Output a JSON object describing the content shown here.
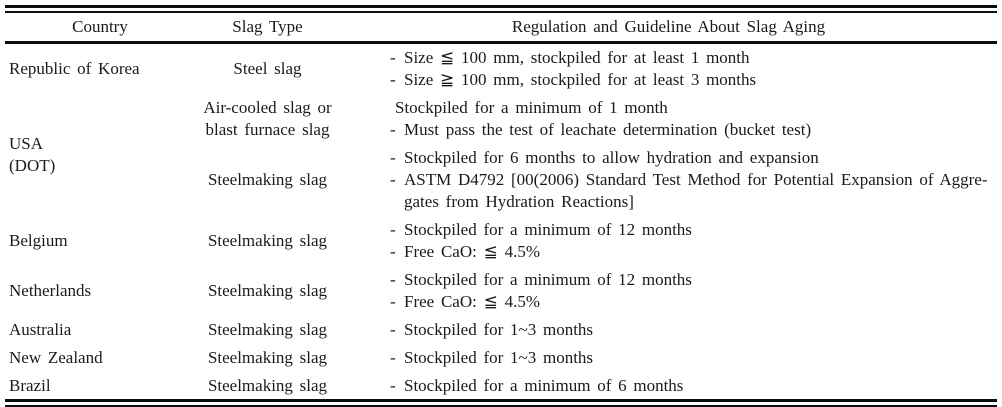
{
  "table": {
    "headers": {
      "country": "Country",
      "slag_type": "Slag Type",
      "regulation": "Regulation and Guideline About Slag Aging"
    },
    "rows": [
      {
        "country": "Republic of Korea",
        "groups": [
          {
            "slag_type": "Steel slag",
            "lines": [
              {
                "dash": "-",
                "text": "Size ≦ 100 mm, stockpiled for at least 1 month"
              },
              {
                "dash": "-",
                "text": "Size ≧ 100 mm, stockpiled for at least 3 months"
              }
            ]
          }
        ]
      },
      {
        "country": "USA",
        "country2": "(DOT)",
        "groups": [
          {
            "slag_type": "Air-cooled slag or",
            "slag_type2": "blast furnace slag",
            "lines": [
              {
                "dash": "",
                "text": "Stockpiled for a minimum of 1 month"
              },
              {
                "dash": "-",
                "text": "Must pass the test of leachate determination (bucket test)"
              }
            ]
          },
          {
            "slag_type": "Steelmaking slag",
            "lines": [
              {
                "dash": "-",
                "text": "Stockpiled for 6 months to allow hydration and expansion"
              },
              {
                "dash": "-",
                "text": "ASTM D4792 [00(2006) Standard Test Method for Potential Expansion of Aggre-",
                "cont": "gates from Hydration Reactions]"
              }
            ]
          }
        ]
      },
      {
        "country": "Belgium",
        "groups": [
          {
            "slag_type": "Steelmaking slag",
            "lines": [
              {
                "dash": "-",
                "text": "Stockpiled for a minimum of 12 months"
              },
              {
                "dash": "-",
                "text": "Free CaO: ≦ 4.5%"
              }
            ]
          }
        ]
      },
      {
        "country": "Netherlands",
        "groups": [
          {
            "slag_type": "Steelmaking slag",
            "lines": [
              {
                "dash": "-",
                "text": "Stockpiled for a minimum of 12 months"
              },
              {
                "dash": "-",
                "text": "Free CaO: ≦ 4.5%"
              }
            ]
          }
        ]
      },
      {
        "country": "Australia",
        "groups": [
          {
            "slag_type": "Steelmaking slag",
            "lines": [
              {
                "dash": "-",
                "text": "Stockpiled for 1~3 months"
              }
            ]
          }
        ]
      },
      {
        "country": "New Zealand",
        "groups": [
          {
            "slag_type": "Steelmaking slag",
            "lines": [
              {
                "dash": "-",
                "text": "Stockpiled for 1~3 months"
              }
            ]
          }
        ]
      },
      {
        "country": "Brazil",
        "groups": [
          {
            "slag_type": "Steelmaking slag",
            "lines": [
              {
                "dash": "-",
                "text": "Stockpiled for a minimum of 6 months"
              }
            ]
          }
        ]
      }
    ]
  }
}
